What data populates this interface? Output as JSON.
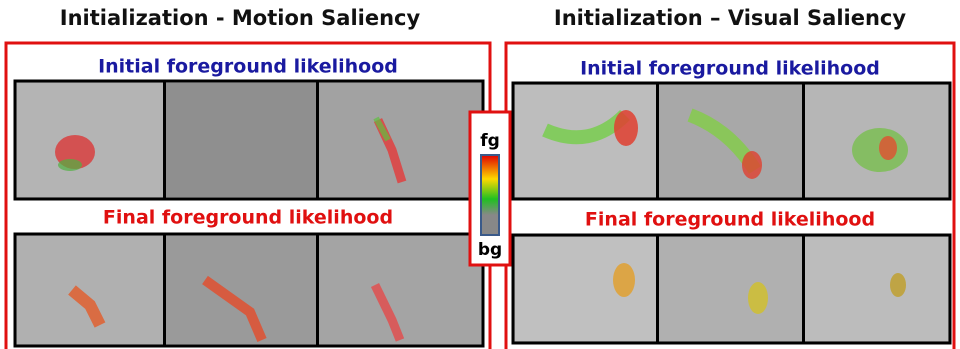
{
  "left": {
    "title": "Initialization - Motion Saliency",
    "rows": [
      {
        "label": "Initial foreground likelihood"
      },
      {
        "label": "Final foreground likelihood"
      }
    ]
  },
  "right": {
    "title": "Initialization – Visual Saliency",
    "rows": [
      {
        "label": "Initial foreground likelihood"
      },
      {
        "label": "Final foreground likelihood"
      }
    ]
  },
  "legend": {
    "top": "fg",
    "bottom": "bg"
  }
}
